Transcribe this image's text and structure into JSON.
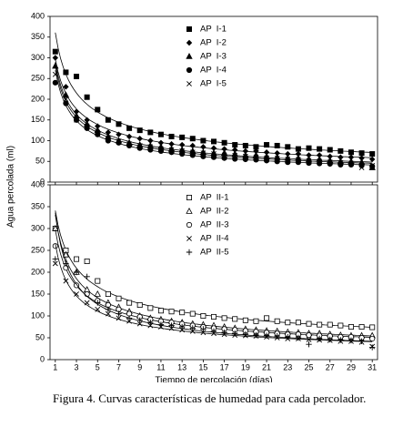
{
  "chart_data": [
    {
      "type": "scatter",
      "ylabel": "Agua percolada (ml)",
      "x": [
        1,
        2,
        3,
        4,
        5,
        6,
        7,
        8,
        9,
        10,
        11,
        12,
        13,
        14,
        15,
        16,
        17,
        18,
        19,
        20,
        21,
        22,
        23,
        24,
        25,
        26,
        27,
        28,
        29,
        30,
        31
      ],
      "xlim": [
        0.5,
        31.5
      ],
      "xticks": [
        1,
        3,
        5,
        7,
        9,
        11,
        13,
        15,
        17,
        19,
        21,
        23,
        25,
        27,
        29,
        31
      ],
      "show_xtick_labels": false,
      "ylim": [
        0,
        400
      ],
      "yticks": [
        0,
        50,
        100,
        150,
        200,
        250,
        300,
        350,
        400
      ],
      "fit_curves": true,
      "legend": "top-right",
      "series": [
        {
          "name": "AP  I-1",
          "color": "#000000",
          "marker": "square-filled",
          "values": [
            315,
            265,
            255,
            205,
            175,
            150,
            140,
            130,
            125,
            120,
            115,
            110,
            108,
            105,
            100,
            98,
            95,
            90,
            88,
            85,
            90,
            88,
            85,
            80,
            82,
            80,
            78,
            75,
            72,
            70,
            68
          ]
        },
        {
          "name": "AP  I-2",
          "color": "#000000",
          "marker": "diamond-filled",
          "values": [
            300,
            230,
            170,
            150,
            135,
            120,
            115,
            110,
            105,
            100,
            95,
            92,
            90,
            88,
            85,
            82,
            80,
            78,
            75,
            75,
            72,
            70,
            68,
            68,
            65,
            65,
            62,
            60,
            60,
            58,
            55
          ]
        },
        {
          "name": "AP  I-3",
          "color": "#000000",
          "marker": "triangle-filled",
          "values": [
            280,
            210,
            160,
            140,
            125,
            110,
            100,
            95,
            90,
            88,
            85,
            80,
            78,
            75,
            72,
            70,
            70,
            68,
            65,
            65,
            62,
            60,
            58,
            58,
            55,
            55,
            52,
            50,
            50,
            48,
            35
          ]
        },
        {
          "name": "AP  I-4",
          "color": "#000000",
          "marker": "circle-filled",
          "values": [
            240,
            190,
            150,
            130,
            115,
            100,
            95,
            88,
            82,
            78,
            75,
            72,
            68,
            65,
            62,
            60,
            58,
            56,
            55,
            54,
            52,
            50,
            48,
            48,
            46,
            45,
            44,
            42,
            42,
            40,
            38
          ]
        },
        {
          "name": "AP  I-5",
          "color": "#000000",
          "marker": "x",
          "values": [
            260,
            200,
            150,
            135,
            120,
            105,
            98,
            92,
            88,
            85,
            80,
            78,
            75,
            72,
            70,
            68,
            65,
            64,
            62,
            60,
            58,
            57,
            55,
            54,
            52,
            50,
            48,
            47,
            45,
            35,
            40
          ]
        }
      ]
    },
    {
      "type": "scatter",
      "xlabel": "Tiempo de percolación (días)",
      "x": [
        1,
        2,
        3,
        4,
        5,
        6,
        7,
        8,
        9,
        10,
        11,
        12,
        13,
        14,
        15,
        16,
        17,
        18,
        19,
        20,
        21,
        22,
        23,
        24,
        25,
        26,
        27,
        28,
        29,
        30,
        31
      ],
      "xlim": [
        0.5,
        31.5
      ],
      "xticks": [
        1,
        3,
        5,
        7,
        9,
        11,
        13,
        15,
        17,
        19,
        21,
        23,
        25,
        27,
        29,
        31
      ],
      "show_xtick_labels": true,
      "ylim": [
        0,
        400
      ],
      "yticks": [
        0,
        50,
        100,
        150,
        200,
        250,
        300,
        350,
        400
      ],
      "fit_curves": true,
      "legend": "top-right",
      "series": [
        {
          "name": "AP  II-1",
          "color": "#000000",
          "marker": "square-open",
          "values": [
            300,
            250,
            230,
            225,
            180,
            150,
            140,
            130,
            125,
            118,
            112,
            110,
            108,
            105,
            100,
            98,
            95,
            93,
            90,
            88,
            95,
            88,
            85,
            85,
            82,
            80,
            80,
            78,
            75,
            75,
            74
          ]
        },
        {
          "name": "AP  II-2",
          "color": "#000000",
          "marker": "triangle-open",
          "values": [
            300,
            240,
            200,
            160,
            150,
            130,
            120,
            110,
            100,
            95,
            92,
            88,
            85,
            82,
            80,
            78,
            75,
            72,
            70,
            68,
            66,
            65,
            63,
            62,
            60,
            60,
            58,
            56,
            55,
            55,
            55
          ]
        },
        {
          "name": "AP  II-3",
          "color": "#000000",
          "marker": "circle-open",
          "values": [
            260,
            210,
            170,
            150,
            135,
            125,
            115,
            105,
            98,
            92,
            88,
            85,
            82,
            78,
            75,
            72,
            70,
            68,
            66,
            64,
            62,
            60,
            58,
            58,
            56,
            55,
            54,
            52,
            52,
            50,
            48
          ]
        },
        {
          "name": "AP  II-4",
          "color": "#000000",
          "marker": "x",
          "values": [
            220,
            180,
            150,
            130,
            115,
            105,
            95,
            88,
            82,
            78,
            75,
            72,
            68,
            65,
            62,
            60,
            58,
            56,
            55,
            54,
            52,
            50,
            48,
            48,
            46,
            45,
            44,
            42,
            42,
            40,
            30
          ]
        },
        {
          "name": "AP  II-5",
          "color": "#000000",
          "marker": "plus",
          "values": [
            230,
            220,
            200,
            190,
            130,
            115,
            105,
            95,
            90,
            85,
            80,
            78,
            75,
            72,
            70,
            65,
            62,
            60,
            58,
            56,
            55,
            54,
            52,
            50,
            35,
            48,
            46,
            45,
            44,
            42,
            28
          ]
        }
      ]
    }
  ],
  "caption": "Figura 4. Curvas características de humedad para cada percolador."
}
